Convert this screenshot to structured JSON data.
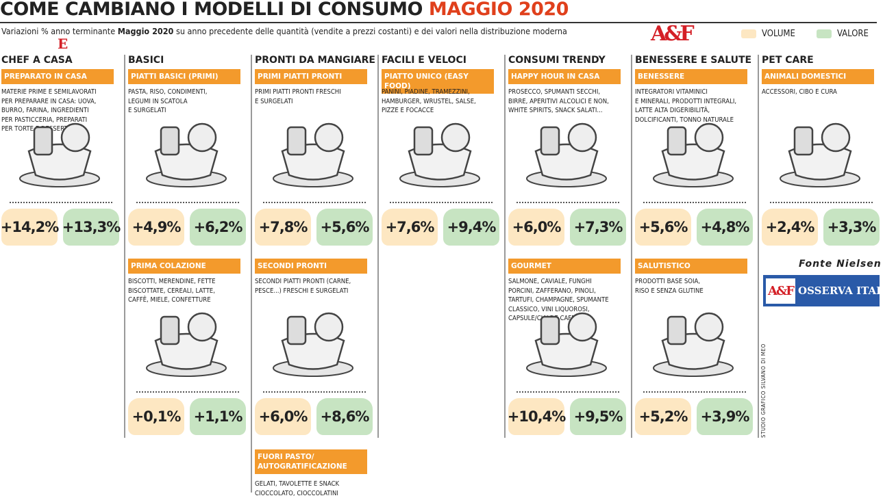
{
  "header": {
    "title": "COME CAMBIANO I MODELLI DI CONSUMO",
    "title_highlight": "MAGGIO 2020",
    "subtitle_start": "Variazioni % anno terminante",
    "subtitle_bold": "Maggio 2020",
    "subtitle_end": "su anno precedente delle quantità (vendite a prezzi costanti) e dei valori nella distribuzione moderna",
    "legend": [
      "VOLUME",
      "VALORE"
    ],
    "logo": "A&F",
    "logo_e": "E"
  },
  "columns": [
    {
      "title": "CHEF A CASA",
      "sections": [
        {
          "tag": "PREPARATO IN CASA",
          "desc": [
            "MATERIE PRIME E SEMILAVORATI",
            "PER PREPARARE IN CASA: UOVA,",
            "BURRO, FARINA, INGREDIENTI",
            "PER PASTICCERIA,  PREPARATI",
            "PER TORTE E DESSERT"
          ],
          "volume": "+14,2%",
          "valore": "+13,3%"
        }
      ]
    },
    {
      "title": "BASICI",
      "sections": [
        {
          "tag": "PIATTI BASICI (PRIMI)",
          "desc": [
            "PASTA, RISO, CONDIMENTI,",
            "LEGUMI IN SCATOLA",
            "E SURGELATI"
          ],
          "volume": "+4,9%",
          "valore": "+6,2%"
        },
        {
          "tag": "PRIMA COLAZIONE",
          "desc": [
            "BISCOTTI, MERENDINE, FETTE",
            "BISCOTTATE, CEREALI, LATTE,",
            "CAFFÈ, MIELE, CONFETTURE"
          ],
          "volume": "+0,1%",
          "valore": "+1,1%"
        }
      ]
    },
    {
      "title": "PRONTI DA MANGIARE",
      "sections": [
        {
          "tag": "PRIMI PIATTI PRONTI",
          "desc": [
            "PRIMI PIATTI PRONTI FRESCHI",
            "E SURGELATI"
          ],
          "volume": "+7,8%",
          "valore": "+5,6%"
        },
        {
          "tag": "SECONDI PRONTI",
          "desc": [
            "SECONDI PIATTI PRONTI (CARNE,",
            "PESCE...) FRESCHI  E SURGELATI"
          ],
          "volume": "+6,0%",
          "valore": "+8,6%"
        },
        {
          "tag": [
            "FUORI PASTO/",
            "AUTOGRATIFICAZIONE"
          ],
          "desc": [
            "GELATI, TAVOLETTE E SNACK",
            "CIOCCOLATO, CIOCCOLATINI"
          ]
        }
      ]
    },
    {
      "title": "FACILI E VELOCI",
      "sections": [
        {
          "tag": "PIATTO UNICO (EASY FOOD)",
          "desc": [
            "PANINI, PIADINE, TRAMEZZINI,",
            "HAMBURGER, WRUSTEL, SALSE,",
            "PIZZE E FOCACCE"
          ],
          "volume": "+7,6%",
          "valore": "+9,4%"
        }
      ]
    },
    {
      "title": "CONSUMI TRENDY",
      "sections": [
        {
          "tag": "HAPPY HOUR IN CASA",
          "desc": [
            "PROSECCO, SPUMANTI SECCHI,",
            "BIRRE, APERITIVI ALCOLICI E NON,",
            "WHITE SPIRITS, SNACK SALATI..."
          ],
          "volume": "+6,0%",
          "valore": "+7,3%"
        },
        {
          "tag": "GOURMET",
          "desc": [
            "SALMONE, CAVIALE, FUNGHI",
            "PORCINI, ZAFFERANO, PINOLI,",
            "TARTUFI, CHAMPAGNE, SPUMANTE",
            "CLASSICO, VINI LIQUOROSI,",
            "CAPSULE/CIALDE CAFFÈ"
          ],
          "volume": "+10,4%",
          "valore": "+9,5%"
        }
      ]
    },
    {
      "title": "BENESSERE E SALUTE",
      "sections": [
        {
          "tag": "BENESSERE",
          "desc": [
            "INTEGRATORI VITAMINICI",
            "E MINERALI, PRODOTTI INTEGRALI,",
            "LATTE ALTA DIGERIBILITÀ,",
            "DOLCIFICANTI, TONNO NATURALE"
          ],
          "volume": "+5,6%",
          "valore": "+4,8%"
        },
        {
          "tag": "SALUTISTICO",
          "desc": [
            "PRODOTTI BASE SOIA,",
            "RISO E SENZA GLUTINE"
          ],
          "volume": "+5,2%",
          "valore": "+3,9%"
        }
      ]
    },
    {
      "title": "PET CARE",
      "sections": [
        {
          "tag": "ANIMALI DOMESTICI",
          "desc": [
            "ACCESSORI, CIBO E CURA"
          ],
          "volume": "+2,4%",
          "valore": "+3,3%"
        }
      ]
    }
  ],
  "source": "Fonte Nielsen",
  "badge_logo": "A&F",
  "badge": "OSSERVA ITALIA",
  "credit": "STUDIO GRAFICO SILVANO DI MEO"
}
